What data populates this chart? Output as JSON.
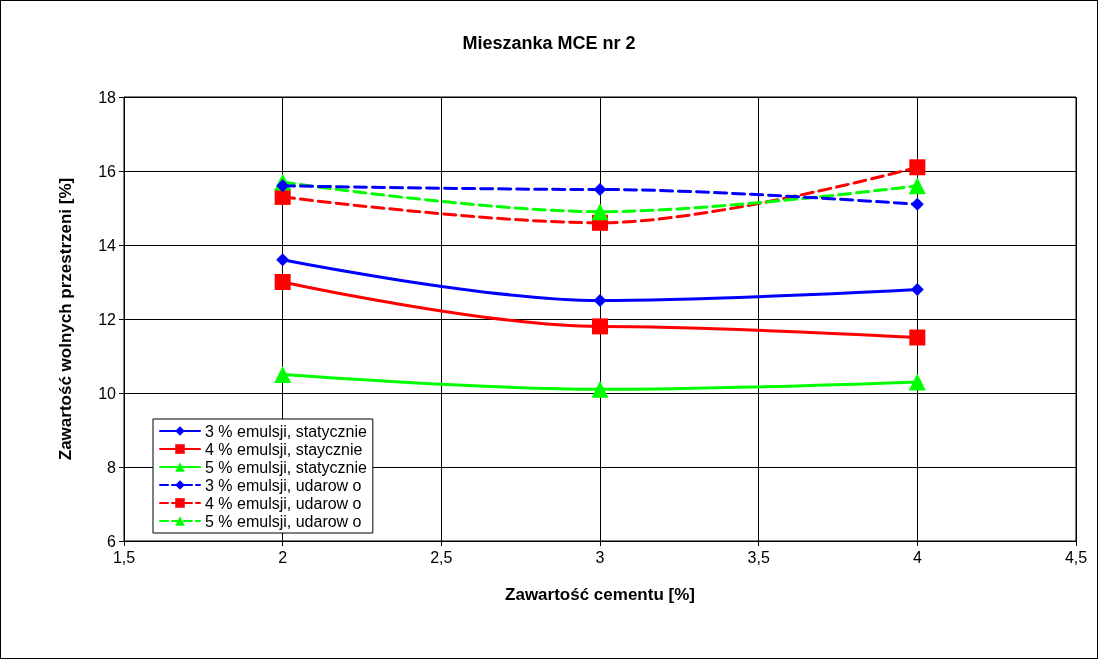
{
  "chart_data": {
    "type": "line",
    "title": "Mieszanka MCE nr 2",
    "xlabel": "Zawartość cementu [%]",
    "ylabel": "Zawartość wolnych przestrzeni [%]",
    "x": [
      2,
      3,
      4
    ],
    "series": [
      {
        "name": "3 % emulsji, statycznie",
        "color": "#0000ff",
        "values": [
          13.6,
          12.5,
          12.8
        ],
        "marker": "diamond",
        "line_style": "solid"
      },
      {
        "name": "4 % emulsji, staycznie",
        "color": "#ff0000",
        "values": [
          13.0,
          11.8,
          11.5
        ],
        "marker": "square",
        "line_style": "solid"
      },
      {
        "name": "5 % emulsji, statycznie",
        "color": "#00ff00",
        "values": [
          10.5,
          10.1,
          10.3
        ],
        "marker": "triangle",
        "line_style": "solid"
      },
      {
        "name": "3 % emulsji, udarow o",
        "color": "#0000ff",
        "values": [
          15.6,
          15.5,
          15.1
        ],
        "marker": "diamond",
        "line_style": "dashed"
      },
      {
        "name": "4 % emulsji, udarow o",
        "color": "#ff0000",
        "values": [
          15.3,
          14.6,
          16.1
        ],
        "marker": "square",
        "line_style": "dashed"
      },
      {
        "name": "5 % emulsji, udarow o",
        "color": "#00ff00",
        "values": [
          15.7,
          14.9,
          15.6
        ],
        "marker": "triangle",
        "line_style": "dashed"
      }
    ],
    "xlim": [
      1.5,
      4.5
    ],
    "xticks": [
      {
        "value": 1.5,
        "label": "1,5"
      },
      2,
      {
        "value": 2.5,
        "label": "2,5"
      },
      3,
      {
        "value": 3.5,
        "label": "3,5"
      },
      4,
      {
        "value": 4.5,
        "label": "4,5"
      }
    ],
    "ylim": [
      6,
      18
    ],
    "yticks": [
      6,
      8,
      10,
      12,
      14,
      16,
      18
    ],
    "grid": true,
    "legend": "bottom left"
  }
}
